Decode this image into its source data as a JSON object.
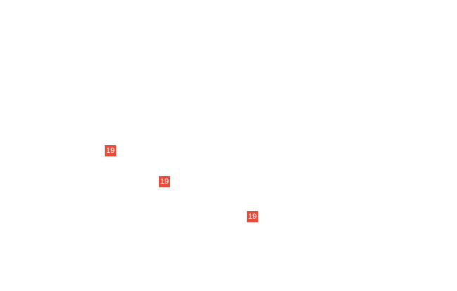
{
  "page": {
    "background_color": "#ffffff"
  },
  "badges": {
    "background_color": "#e74c3c",
    "text_color": "#ffffff",
    "items": [
      {
        "label": "19"
      },
      {
        "label": "19"
      },
      {
        "label": "19"
      }
    ]
  }
}
